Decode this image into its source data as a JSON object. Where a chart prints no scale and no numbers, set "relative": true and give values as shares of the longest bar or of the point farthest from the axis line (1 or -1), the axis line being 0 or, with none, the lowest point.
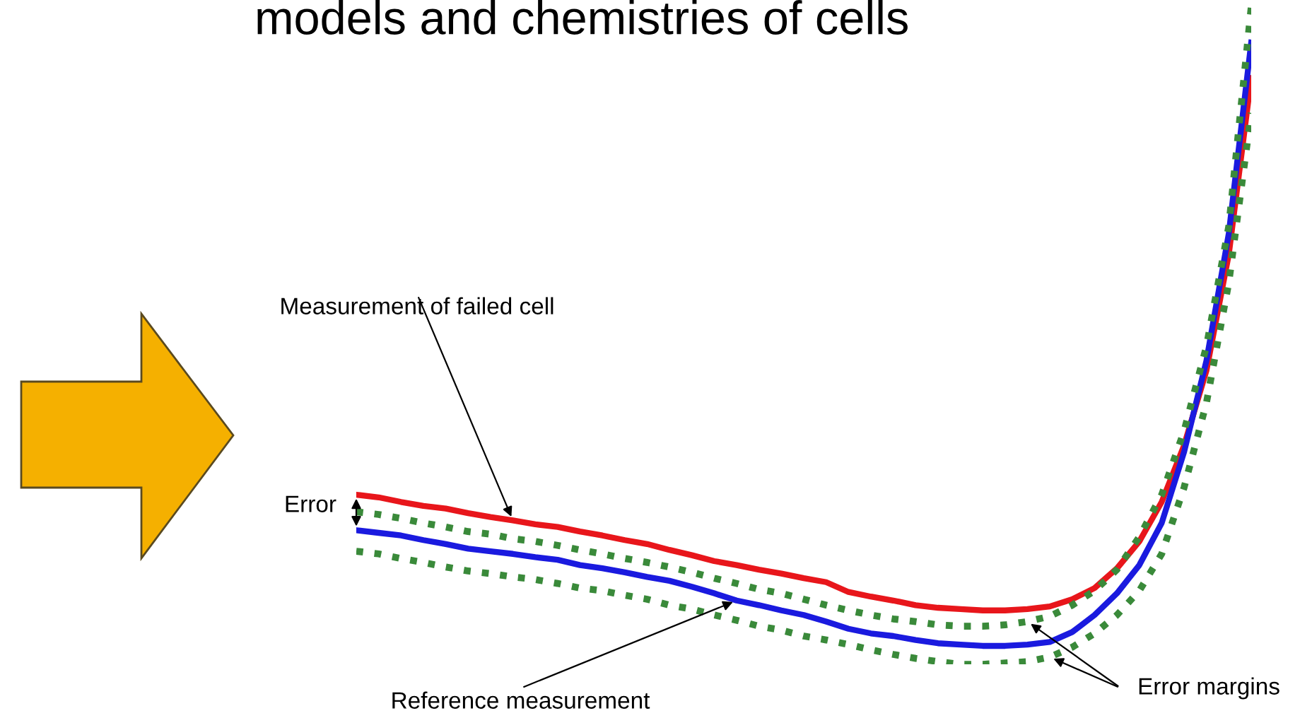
{
  "chart_data": {
    "type": "line",
    "title": "models and chemistries of cells",
    "relative": true,
    "legend": false,
    "grid": false,
    "categories": [
      null,
      null,
      null,
      null,
      null,
      null,
      null,
      null,
      null,
      null,
      null,
      null,
      null,
      null,
      null,
      null,
      null,
      null,
      null,
      null,
      null,
      null,
      null,
      null,
      null,
      null,
      null,
      null,
      null,
      null,
      null,
      null,
      null,
      null,
      null,
      null,
      null,
      null,
      null,
      null,
      null
    ],
    "series": [
      {
        "color": "#e8161b",
        "line_style": "solid",
        "values": [
          0.258,
          0.254,
          0.247,
          0.241,
          0.237,
          0.23,
          0.224,
          0.219,
          0.213,
          0.209,
          0.202,
          0.196,
          0.189,
          0.183,
          0.174,
          0.166,
          0.157,
          0.151,
          0.144,
          0.138,
          0.131,
          0.125,
          0.11,
          0.103,
          0.097,
          0.09,
          0.086,
          0.084,
          0.082,
          0.082,
          0.084,
          0.088,
          0.099,
          0.116,
          0.146,
          0.187,
          0.247,
          0.333,
          0.447,
          0.624,
          0.892
        ]
      },
      {
        "color": "#1a1adf",
        "line_style": "solid",
        "values": [
          0.204,
          0.2,
          0.196,
          0.189,
          0.183,
          0.176,
          0.172,
          0.168,
          0.163,
          0.159,
          0.151,
          0.146,
          0.14,
          0.133,
          0.127,
          0.118,
          0.108,
          0.097,
          0.09,
          0.082,
          0.075,
          0.065,
          0.054,
          0.047,
          0.043,
          0.037,
          0.032,
          0.03,
          0.028,
          0.028,
          0.03,
          0.034,
          0.049,
          0.075,
          0.108,
          0.151,
          0.215,
          0.323,
          0.462,
          0.656,
          0.946
        ]
      },
      {
        "color": "#3a8a3a",
        "line_style": "dotted",
        "values": [
          0.232,
          0.228,
          0.222,
          0.215,
          0.209,
          0.202,
          0.198,
          0.191,
          0.187,
          0.181,
          0.174,
          0.168,
          0.161,
          0.155,
          0.148,
          0.14,
          0.131,
          0.123,
          0.114,
          0.108,
          0.099,
          0.09,
          0.082,
          0.075,
          0.069,
          0.065,
          0.06,
          0.058,
          0.058,
          0.06,
          0.065,
          0.073,
          0.09,
          0.112,
          0.144,
          0.194,
          0.258,
          0.355,
          0.484,
          0.667,
          1
        ]
      },
      {
        "color": "#3a8a3a",
        "line_style": "dotted",
        "values": [
          0.172,
          0.168,
          0.161,
          0.155,
          0.148,
          0.142,
          0.138,
          0.133,
          0.129,
          0.123,
          0.116,
          0.112,
          0.105,
          0.099,
          0.09,
          0.084,
          0.075,
          0.067,
          0.058,
          0.052,
          0.043,
          0.037,
          0.03,
          0.022,
          0.015,
          0.009,
          0.004,
          0,
          0,
          0.002,
          0.004,
          0.011,
          0.026,
          0.047,
          0.075,
          0.112,
          0.168,
          0.269,
          0.398,
          0.581,
          0.839
        ]
      }
    ],
    "annotations": [
      "Measurement of failed cell",
      "Error",
      "Reference measurement",
      "Error margins"
    ]
  }
}
